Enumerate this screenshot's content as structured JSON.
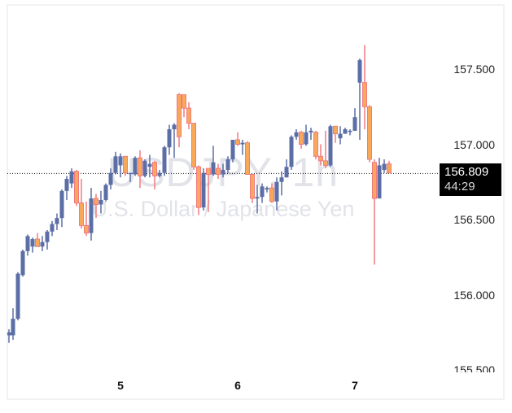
{
  "chart_data": {
    "type": "candlestick",
    "title": "USDJPY, 1h",
    "subtitle": "U.S. Dollar / Japanese Yen",
    "xlabel": "",
    "ylabel": "",
    "y_ticks": [
      "157.500",
      "157.000",
      "156.500",
      "156.000",
      "155.500"
    ],
    "x_ticks": [
      {
        "label": "5",
        "x": 148
      },
      {
        "label": "6",
        "x": 292
      },
      {
        "label": "7",
        "x": 436
      }
    ],
    "ylim": [
      155.45,
      157.95
    ],
    "grid": false,
    "current_price": "156.809",
    "countdown": "44:29",
    "colors": {
      "up": "#5b6ea6",
      "down_fill": "#f9a85a",
      "down_border": "#f07a80",
      "watermark": "#e2e3e8"
    },
    "candles": [
      {
        "x": 11,
        "o": 155.73,
        "h": 155.77,
        "l": 155.68,
        "c": 155.75
      },
      {
        "x": 16,
        "o": 155.73,
        "h": 155.91,
        "l": 155.7,
        "c": 155.84
      },
      {
        "x": 22,
        "o": 155.84,
        "h": 156.15,
        "l": 155.83,
        "c": 156.14
      },
      {
        "x": 28,
        "o": 156.13,
        "h": 156.3,
        "l": 156.12,
        "c": 156.29
      },
      {
        "x": 34,
        "o": 156.29,
        "h": 156.4,
        "l": 156.26,
        "c": 156.39
      },
      {
        "x": 40,
        "o": 156.32,
        "h": 156.38,
        "l": 156.28,
        "c": 156.37
      },
      {
        "x": 46,
        "o": 156.37,
        "h": 156.41,
        "l": 156.33,
        "c": 156.32
      },
      {
        "x": 52,
        "o": 156.32,
        "h": 156.39,
        "l": 156.29,
        "c": 156.35
      },
      {
        "x": 58,
        "o": 156.35,
        "h": 156.43,
        "l": 156.3,
        "c": 156.42
      },
      {
        "x": 64,
        "o": 156.42,
        "h": 156.49,
        "l": 156.39,
        "c": 156.47
      },
      {
        "x": 70,
        "o": 156.47,
        "h": 156.54,
        "l": 156.43,
        "c": 156.51
      },
      {
        "x": 76,
        "o": 156.51,
        "h": 156.7,
        "l": 156.45,
        "c": 156.69
      },
      {
        "x": 82,
        "o": 156.69,
        "h": 156.79,
        "l": 156.63,
        "c": 156.77
      },
      {
        "x": 88,
        "o": 156.74,
        "h": 156.84,
        "l": 156.71,
        "c": 156.82
      },
      {
        "x": 94,
        "o": 156.82,
        "h": 156.83,
        "l": 156.59,
        "c": 156.61
      },
      {
        "x": 100,
        "o": 156.61,
        "h": 156.77,
        "l": 156.44,
        "c": 156.46
      },
      {
        "x": 106,
        "o": 156.46,
        "h": 156.62,
        "l": 156.39,
        "c": 156.41
      },
      {
        "x": 112,
        "o": 156.41,
        "h": 156.71,
        "l": 156.36,
        "c": 156.64
      },
      {
        "x": 118,
        "o": 156.64,
        "h": 156.67,
        "l": 156.51,
        "c": 156.6
      },
      {
        "x": 124,
        "o": 156.6,
        "h": 156.69,
        "l": 156.54,
        "c": 156.63
      },
      {
        "x": 130,
        "o": 156.63,
        "h": 156.74,
        "l": 156.62,
        "c": 156.73
      },
      {
        "x": 136,
        "o": 156.73,
        "h": 156.84,
        "l": 156.7,
        "c": 156.81
      },
      {
        "x": 142,
        "o": 156.81,
        "h": 156.95,
        "l": 156.8,
        "c": 156.92
      },
      {
        "x": 148,
        "o": 156.86,
        "h": 156.94,
        "l": 156.78,
        "c": 156.92
      },
      {
        "x": 154,
        "o": 156.92,
        "h": 156.92,
        "l": 156.79,
        "c": 156.81
      },
      {
        "x": 160,
        "o": 156.81,
        "h": 156.81,
        "l": 156.75,
        "c": 156.81
      },
      {
        "x": 166,
        "o": 156.8,
        "h": 156.92,
        "l": 156.79,
        "c": 156.91
      },
      {
        "x": 172,
        "o": 156.91,
        "h": 156.96,
        "l": 156.71,
        "c": 156.79
      },
      {
        "x": 178,
        "o": 156.79,
        "h": 156.9,
        "l": 156.78,
        "c": 156.89
      },
      {
        "x": 184,
        "o": 156.85,
        "h": 156.93,
        "l": 156.78,
        "c": 156.87
      },
      {
        "x": 190,
        "o": 156.88,
        "h": 156.89,
        "l": 156.7,
        "c": 156.79
      },
      {
        "x": 196,
        "o": 156.79,
        "h": 156.83,
        "l": 156.78,
        "c": 156.81
      },
      {
        "x": 202,
        "o": 156.81,
        "h": 156.99,
        "l": 156.79,
        "c": 156.98
      },
      {
        "x": 208,
        "o": 156.98,
        "h": 157.13,
        "l": 156.93,
        "c": 157.1
      },
      {
        "x": 214,
        "o": 157.1,
        "h": 157.14,
        "l": 156.91,
        "c": 157.13
      },
      {
        "x": 220,
        "o": 157.33,
        "h": 157.34,
        "l": 156.98,
        "c": 157.05
      },
      {
        "x": 226,
        "o": 157.33,
        "h": 157.33,
        "l": 157.18,
        "c": 157.24
      },
      {
        "x": 232,
        "o": 157.24,
        "h": 157.28,
        "l": 157.1,
        "c": 157.14
      },
      {
        "x": 238,
        "o": 157.14,
        "h": 157.14,
        "l": 156.83,
        "c": 156.85
      },
      {
        "x": 244,
        "o": 156.85,
        "h": 156.86,
        "l": 156.53,
        "c": 156.58
      },
      {
        "x": 250,
        "o": 156.58,
        "h": 156.84,
        "l": 156.56,
        "c": 156.81
      },
      {
        "x": 256,
        "o": 156.84,
        "h": 156.84,
        "l": 156.55,
        "c": 156.8
      },
      {
        "x": 262,
        "o": 156.8,
        "h": 156.99,
        "l": 156.79,
        "c": 156.88
      },
      {
        "x": 268,
        "o": 156.84,
        "h": 156.87,
        "l": 156.77,
        "c": 156.8
      },
      {
        "x": 274,
        "o": 156.8,
        "h": 156.87,
        "l": 156.78,
        "c": 156.83
      },
      {
        "x": 280,
        "o": 156.83,
        "h": 156.92,
        "l": 156.81,
        "c": 156.9
      },
      {
        "x": 286,
        "o": 156.9,
        "h": 157.02,
        "l": 156.88,
        "c": 157.03
      },
      {
        "x": 292,
        "o": 157.03,
        "h": 157.08,
        "l": 156.99,
        "c": 157.0
      },
      {
        "x": 298,
        "o": 157.0,
        "h": 157.03,
        "l": 156.93,
        "c": 157.01
      },
      {
        "x": 304,
        "o": 157.01,
        "h": 157.02,
        "l": 156.8,
        "c": 156.8
      },
      {
        "x": 310,
        "o": 156.8,
        "h": 156.8,
        "l": 156.61,
        "c": 156.64
      },
      {
        "x": 316,
        "o": 156.64,
        "h": 156.73,
        "l": 156.54,
        "c": 156.65
      },
      {
        "x": 322,
        "o": 156.65,
        "h": 156.74,
        "l": 156.61,
        "c": 156.72
      },
      {
        "x": 328,
        "o": 156.7,
        "h": 156.72,
        "l": 156.68,
        "c": 156.71
      },
      {
        "x": 334,
        "o": 156.71,
        "h": 156.74,
        "l": 156.61,
        "c": 156.62
      },
      {
        "x": 340,
        "o": 156.62,
        "h": 156.78,
        "l": 156.56,
        "c": 156.75
      },
      {
        "x": 346,
        "o": 156.75,
        "h": 156.82,
        "l": 156.66,
        "c": 156.78
      },
      {
        "x": 352,
        "o": 156.78,
        "h": 156.9,
        "l": 156.78,
        "c": 156.85
      },
      {
        "x": 358,
        "o": 156.85,
        "h": 157.06,
        "l": 156.83,
        "c": 157.05
      },
      {
        "x": 364,
        "o": 157.05,
        "h": 157.1,
        "l": 157.03,
        "c": 157.08
      },
      {
        "x": 370,
        "o": 157.08,
        "h": 157.09,
        "l": 156.97,
        "c": 157.0
      },
      {
        "x": 376,
        "o": 157.0,
        "h": 157.13,
        "l": 156.99,
        "c": 157.08
      },
      {
        "x": 382,
        "o": 157.08,
        "h": 157.11,
        "l": 157.03,
        "c": 157.09
      },
      {
        "x": 388,
        "o": 157.08,
        "h": 157.09,
        "l": 156.9,
        "c": 156.92
      },
      {
        "x": 394,
        "o": 156.92,
        "h": 157.0,
        "l": 156.86,
        "c": 156.89
      },
      {
        "x": 400,
        "o": 156.89,
        "h": 157.09,
        "l": 156.84,
        "c": 156.86
      },
      {
        "x": 406,
        "o": 156.86,
        "h": 157.13,
        "l": 156.85,
        "c": 157.12
      },
      {
        "x": 412,
        "o": 157.12,
        "h": 157.12,
        "l": 157.01,
        "c": 157.07
      },
      {
        "x": 418,
        "o": 157.04,
        "h": 157.12,
        "l": 157.0,
        "c": 157.07
      },
      {
        "x": 424,
        "o": 157.07,
        "h": 157.11,
        "l": 157.07,
        "c": 157.1
      },
      {
        "x": 430,
        "o": 157.09,
        "h": 157.1,
        "l": 157.06,
        "c": 157.09
      },
      {
        "x": 436,
        "o": 157.09,
        "h": 157.24,
        "l": 157.09,
        "c": 157.18
      },
      {
        "x": 442,
        "o": 157.41,
        "h": 157.57,
        "l": 157.03,
        "c": 157.56
      },
      {
        "x": 448,
        "o": 157.41,
        "h": 157.66,
        "l": 157.1,
        "c": 157.25
      },
      {
        "x": 454,
        "o": 157.25,
        "h": 157.26,
        "l": 156.88,
        "c": 156.9
      },
      {
        "x": 460,
        "o": 156.88,
        "h": 156.9,
        "l": 156.2,
        "c": 156.64
      },
      {
        "x": 466,
        "o": 156.64,
        "h": 156.91,
        "l": 156.64,
        "c": 156.86
      },
      {
        "x": 472,
        "o": 156.83,
        "h": 156.9,
        "l": 156.81,
        "c": 156.87
      },
      {
        "x": 478,
        "o": 156.87,
        "h": 156.89,
        "l": 156.81,
        "c": 156.81
      }
    ]
  }
}
